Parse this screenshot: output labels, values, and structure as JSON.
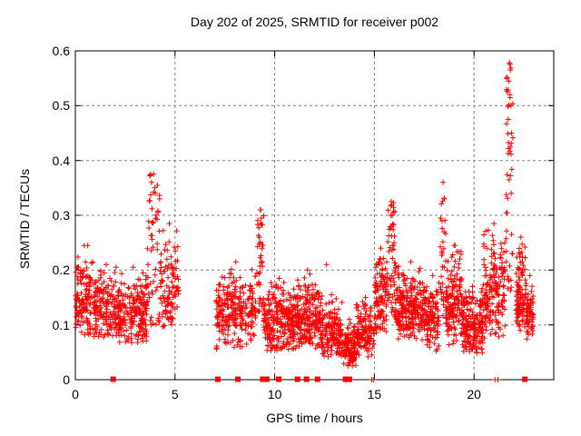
{
  "chart_data": {
    "type": "scatter",
    "title": "Day 202 of 2025, SRMTID for receiver p002",
    "xlabel": "GPS time / hours",
    "ylabel": "SRMTID / TECUs",
    "xlim": [
      0,
      24
    ],
    "ylim": [
      0,
      0.6
    ],
    "xticks": [
      0,
      5,
      10,
      15,
      20
    ],
    "yticks": [
      0,
      0.1,
      0.2,
      0.3,
      0.4,
      0.5,
      0.6
    ],
    "grid": true,
    "legend": "none",
    "colors": {
      "points": "#ff0000",
      "grid": "#808080",
      "border": "#000000",
      "background": "#ffffff",
      "text": "#000000"
    },
    "series": [
      {
        "name": "srmtid-points",
        "marker": "plus",
        "color": "#ff0000",
        "clusters": [
          [
            0.0,
            0.9,
            0.08,
            0.245,
            120,
            "band"
          ],
          [
            0.9,
            2.2,
            0.075,
            0.21,
            180,
            "band"
          ],
          [
            2.2,
            3.6,
            0.065,
            0.205,
            190,
            "band"
          ],
          [
            3.6,
            4.25,
            0.1,
            0.375,
            55,
            "spike"
          ],
          [
            4.25,
            5.18,
            0.09,
            0.285,
            100,
            "band"
          ],
          [
            7.05,
            9.05,
            0.055,
            0.215,
            250,
            "band"
          ],
          [
            9.1,
            9.45,
            0.12,
            0.31,
            40,
            "spike"
          ],
          [
            9.45,
            11.0,
            0.05,
            0.185,
            250,
            "band"
          ],
          [
            11.0,
            12.3,
            0.05,
            0.2,
            210,
            "band"
          ],
          [
            12.3,
            13.4,
            0.04,
            0.155,
            160,
            "band"
          ],
          [
            13.4,
            14.1,
            0.02,
            0.11,
            100,
            "band"
          ],
          [
            14.1,
            15.0,
            0.04,
            0.15,
            120,
            "band"
          ],
          [
            15.0,
            15.65,
            0.08,
            0.24,
            100,
            "band"
          ],
          [
            15.65,
            16.05,
            0.11,
            0.325,
            55,
            "spike"
          ],
          [
            16.05,
            17.6,
            0.07,
            0.215,
            250,
            "band"
          ],
          [
            17.6,
            18.25,
            0.05,
            0.19,
            100,
            "band"
          ],
          [
            18.3,
            18.6,
            0.1,
            0.36,
            35,
            "spike"
          ],
          [
            18.6,
            19.4,
            0.06,
            0.245,
            140,
            "band"
          ],
          [
            19.4,
            20.45,
            0.04,
            0.17,
            180,
            "band"
          ],
          [
            20.45,
            21.55,
            0.07,
            0.285,
            170,
            "band"
          ],
          [
            21.6,
            21.95,
            0.15,
            0.578,
            45,
            "spike"
          ],
          [
            22.1,
            22.6,
            0.08,
            0.26,
            95,
            "band"
          ],
          [
            22.6,
            23.0,
            0.07,
            0.19,
            60,
            "band"
          ]
        ],
        "peak_points": [
          [
            0.62,
            0.245
          ],
          [
            3.78,
            0.375
          ],
          [
            3.82,
            0.36
          ],
          [
            9.3,
            0.31
          ],
          [
            9.33,
            0.295
          ],
          [
            12.6,
            0.21
          ],
          [
            15.85,
            0.325
          ],
          [
            15.9,
            0.3
          ],
          [
            18.45,
            0.36
          ],
          [
            18.5,
            0.33
          ],
          [
            19.05,
            0.245
          ],
          [
            21.78,
            0.578
          ],
          [
            21.82,
            0.565
          ],
          [
            21.75,
            0.545
          ],
          [
            21.8,
            0.52
          ],
          [
            21.85,
            0.5
          ],
          [
            21.72,
            0.475
          ],
          [
            21.88,
            0.45
          ],
          [
            13.95,
            0.035
          ],
          [
            13.9,
            0.025
          ]
        ],
        "zero_plus_x": [
          13.6,
          13.8,
          14.87,
          14.97,
          21.05,
          21.2
        ]
      },
      {
        "name": "zero-flag-squares",
        "marker": "filled-square",
        "color": "#ff0000",
        "y": 0,
        "x": [
          1.9,
          7.15,
          8.15,
          9.4,
          9.6,
          10.2,
          11.15,
          11.6,
          12.15,
          13.55,
          13.75,
          22.55
        ]
      }
    ]
  }
}
